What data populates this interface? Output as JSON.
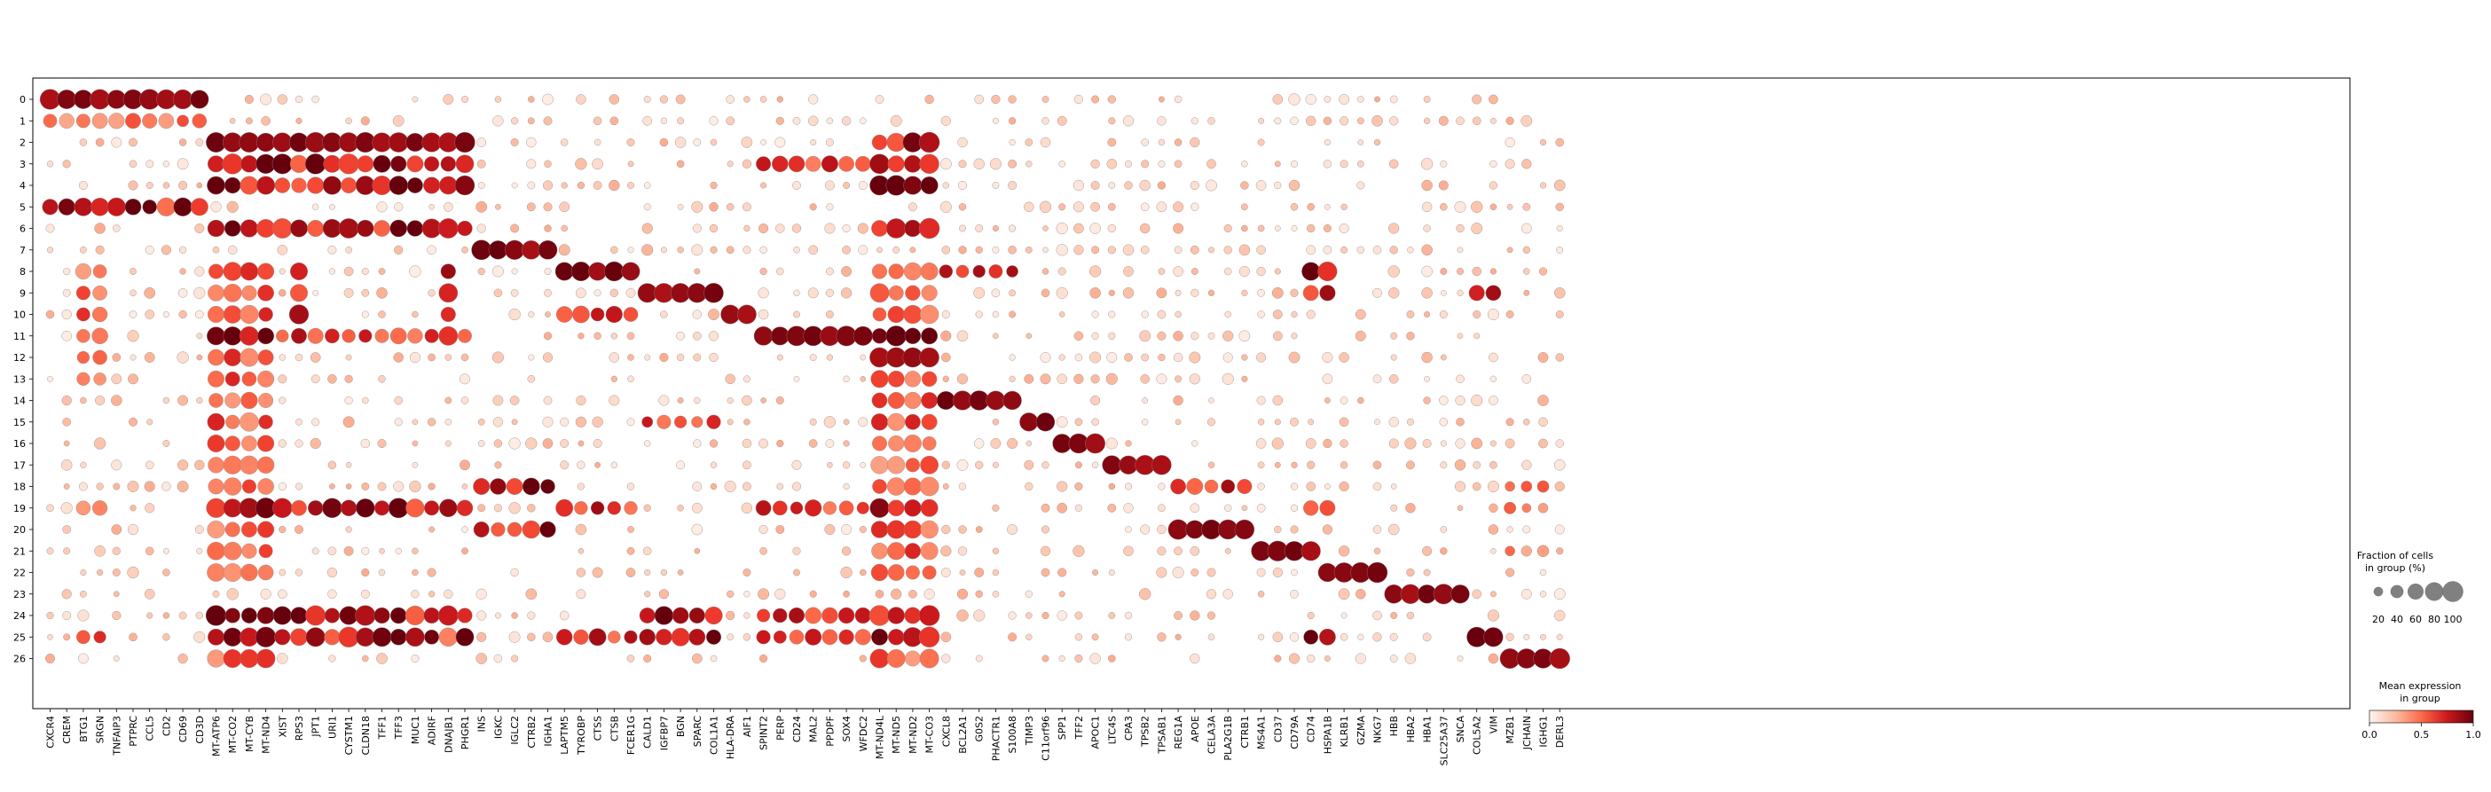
{
  "chart_data": {
    "type": "dotplot",
    "genes": [
      "CXCR4",
      "CREM",
      "BTG1",
      "SRGN",
      "TNFAIP3",
      "PTPRC",
      "CCL5",
      "CD2",
      "CD69",
      "CD3D",
      "MT-ATP6",
      "MT-CO2",
      "MT-CYB",
      "MT-ND4",
      "XIST",
      "RPS3",
      "JPT1",
      "URI1",
      "CYSTM1",
      "CLDN18",
      "TFF1",
      "TFF3",
      "MUC1",
      "ADIRF",
      "DNAJB1",
      "PHGR1",
      "INS",
      "IGKC",
      "IGLC2",
      "CTRB2",
      "IGHA1",
      "LAPTM5",
      "TYROBP",
      "CTSS",
      "CTSB",
      "FCER1G",
      "CALD1",
      "IGFBP7",
      "BGN",
      "SPARC",
      "COL1A1",
      "HLA-DRA",
      "AIF1",
      "SPINT2",
      "PERP",
      "CD24",
      "MAL2",
      "PPDPF",
      "SOX4",
      "WFDC2",
      "MT-ND4L",
      "MT-ND5",
      "MT-ND2",
      "MT-CO3",
      "CXCL8",
      "BCL2A1",
      "G0S2",
      "PHACTR1",
      "S100A8",
      "TIMP3",
      "C11orf96",
      "SPP1",
      "TFF2",
      "APOC1",
      "LTC4S",
      "CPA3",
      "TPSB2",
      "TPSAB1",
      "REG1A",
      "APOE",
      "CELA3A",
      "PLA2G1B",
      "CTRB1",
      "MS4A1",
      "CD37",
      "CD79A",
      "CD74",
      "HSPA1B",
      "KLRB1",
      "GZMA",
      "NKG7",
      "HBB",
      "HBA2",
      "HBA1",
      "SLC25A37",
      "SNCA",
      "COL5A2",
      "VIM",
      "MZB1",
      "JCHAIN",
      "IGHG1",
      "DERL3"
    ],
    "groups": [
      "0",
      "1",
      "2",
      "3",
      "4",
      "5",
      "6",
      "7",
      "8",
      "9",
      "10",
      "11",
      "12",
      "13",
      "14",
      "15",
      "16",
      "17",
      "18",
      "19",
      "20",
      "21",
      "22",
      "23",
      "24",
      "25",
      "26"
    ],
    "gene_blocks": [
      {
        "group": "0",
        "genes": [
          "CXCR4",
          "CREM",
          "BTG1",
          "SRGN",
          "TNFAIP3",
          "PTPRC",
          "CCL5",
          "CD2",
          "CD69",
          "CD3D"
        ]
      },
      {
        "group": "2",
        "genes": [
          "MT-ATP6",
          "MT-CO2",
          "MT-CYB",
          "MT-ND4",
          "XIST",
          "RPS3",
          "JPT1",
          "URI1",
          "CYSTM1",
          "CLDN18",
          "TFF1",
          "TFF3",
          "MUC1",
          "ADIRF",
          "DNAJB1",
          "PHGR1"
        ]
      },
      {
        "group": "7",
        "genes": [
          "INS",
          "IGKC",
          "IGLC2",
          "CTRB2",
          "IGHA1"
        ]
      },
      {
        "group": "8",
        "genes": [
          "LAPTM5",
          "TYROBP",
          "CTSS",
          "CTSB",
          "FCER1G"
        ]
      },
      {
        "group": "9",
        "genes": [
          "CALD1",
          "IGFBP7",
          "BGN",
          "SPARC",
          "COL1A1"
        ]
      },
      {
        "group": "10",
        "genes": [
          "HLA-DRA",
          "AIF1"
        ]
      },
      {
        "group": "11",
        "genes": [
          "SPINT2",
          "PERP",
          "CD24",
          "MAL2",
          "PPDPF",
          "SOX4",
          "WFDC2"
        ]
      },
      {
        "group": "12",
        "genes": [
          "MT-ND4L",
          "MT-ND5",
          "MT-ND2",
          "MT-CO3"
        ]
      },
      {
        "group": "14",
        "genes": [
          "CXCL8",
          "BCL2A1",
          "G0S2",
          "PHACTR1",
          "S100A8"
        ]
      },
      {
        "group": "15",
        "genes": [
          "TIMP3",
          "C11orf96"
        ]
      },
      {
        "group": "16",
        "genes": [
          "SPP1",
          "TFF2",
          "APOC1"
        ]
      },
      {
        "group": "17",
        "genes": [
          "LTC4S",
          "CPA3",
          "TPSB2",
          "TPSAB1"
        ]
      },
      {
        "group": "20",
        "genes": [
          "REG1A",
          "APOE",
          "CELA3A",
          "PLA2G1B",
          "CTRB1"
        ]
      },
      {
        "group": "21",
        "genes": [
          "MS4A1",
          "CD37",
          "CD79A",
          "CD74"
        ]
      },
      {
        "group": "22",
        "genes": [
          "HSPA1B",
          "KLRB1",
          "GZMA",
          "NKG7"
        ]
      },
      {
        "group": "23",
        "genes": [
          "HBB",
          "HBA2",
          "HBA1",
          "SLC25A37",
          "SNCA"
        ]
      },
      {
        "group": "25",
        "genes": [
          "COL5A2",
          "VIM"
        ]
      },
      {
        "group": "26",
        "genes": [
          "MZB1",
          "JCHAIN",
          "IGHG1",
          "DERL3"
        ]
      }
    ],
    "dot_legend": {
      "title_line1": "Fraction of cells",
      "title_line2": "in group (%)",
      "ticks": [
        20,
        40,
        60,
        80,
        100
      ]
    },
    "color_legend": {
      "title_line1": "Mean expression",
      "title_line2": "in group",
      "ticks": [
        "0.0",
        "0.5",
        "1.0"
      ],
      "colormap": "Reds"
    }
  }
}
